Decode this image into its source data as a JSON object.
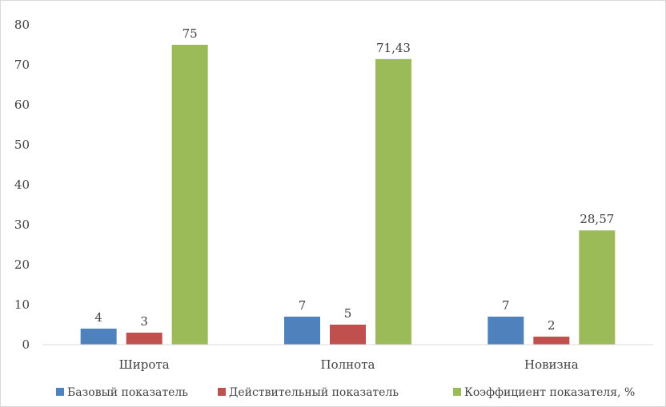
{
  "chart_data": {
    "type": "bar",
    "categories": [
      "Широта",
      "Полнота",
      "Новизна"
    ],
    "series": [
      {
        "name": "Базовый показатель",
        "values": [
          4,
          7,
          7
        ],
        "labels": [
          "4",
          "7",
          "7"
        ],
        "color": "#4f81bd"
      },
      {
        "name": "Действительный показатель",
        "values": [
          3,
          5,
          2
        ],
        "labels": [
          "3",
          "5",
          "2"
        ],
        "color": "#c0504d"
      },
      {
        "name": "Коэффициент показателя, %",
        "values": [
          75,
          71.43,
          28.57
        ],
        "labels": [
          "75",
          "71,43",
          "28,57"
        ],
        "color": "#9bbb59"
      }
    ],
    "ylim": [
      0,
      80
    ],
    "yticks": [
      "0",
      "10",
      "20",
      "30",
      "40",
      "50",
      "60",
      "70",
      "80"
    ],
    "grid": false,
    "legend_position": "bottom"
  }
}
